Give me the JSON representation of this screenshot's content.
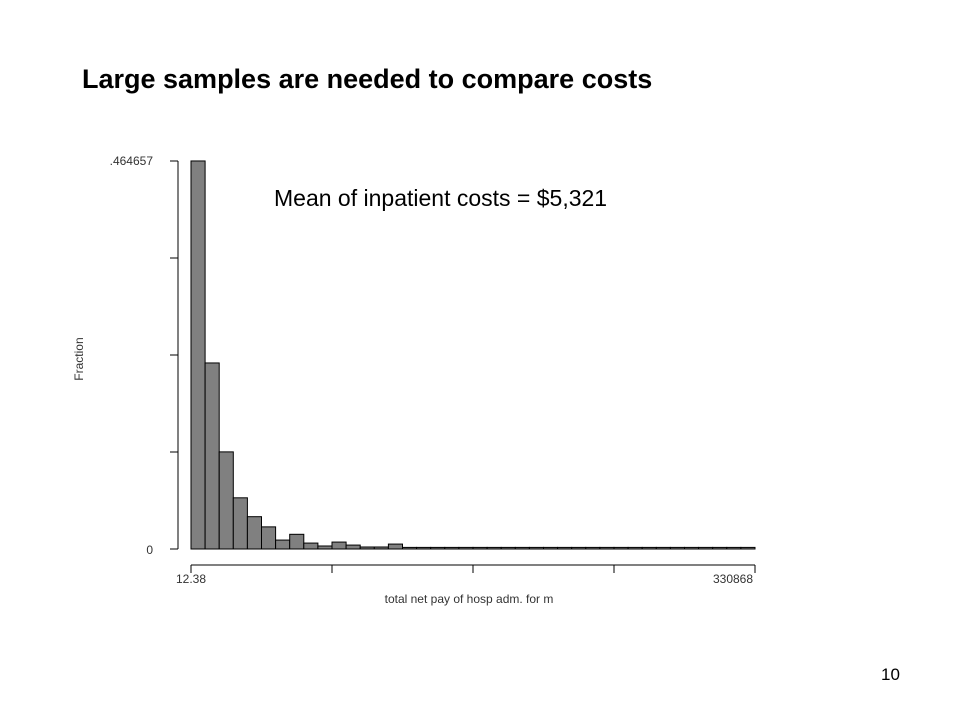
{
  "slide": {
    "title": "Large samples are needed to compare costs",
    "annotation": "Mean of inpatient costs = $5,321",
    "page_number": "10"
  },
  "chart_data": {
    "type": "bar",
    "title": "",
    "xlabel": "total net pay of hosp adm. for m",
    "ylabel": "Fraction",
    "x_tick_labels": [
      "12.38",
      "330868"
    ],
    "y_tick_labels": [
      "0",
      ".464657"
    ],
    "xlim": [
      12.38,
      330868
    ],
    "ylim": [
      0,
      0.464657
    ],
    "grid": false,
    "bar_color": "#808080",
    "bin_count": 40,
    "values": [
      0.4647,
      0.2228,
      0.1163,
      0.0613,
      0.0387,
      0.0265,
      0.0107,
      0.0176,
      0.0071,
      0.0036,
      0.0083,
      0.0047,
      0.0024,
      0.0024,
      0.0059,
      0.0012,
      0.0004,
      0.0002,
      0.0002,
      0.0002,
      0.0006,
      0.0004,
      0.0002,
      0.0005,
      0.0002,
      0.0006,
      0.0006,
      0.0002,
      0.0002,
      0.0006,
      0.0006,
      0.0002,
      0.0002,
      0.0002,
      0.0006,
      0.0002,
      0.0002,
      0.0002,
      0.0006,
      0.0002
    ]
  }
}
